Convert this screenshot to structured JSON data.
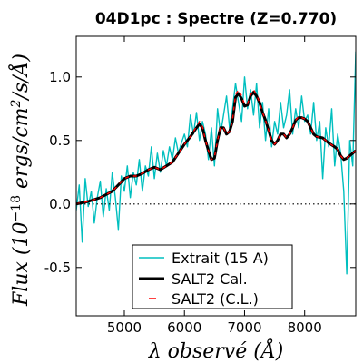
{
  "chart_data": {
    "type": "line",
    "title": "04D1pc : Spectre (Z=0.770)",
    "xlabel": "λ observé (Å)",
    "ylabel": "Flux (10⁻¹⁸ ergs/cm²/s/Å)",
    "xlim": [
      4200,
      8850
    ],
    "ylim": [
      -0.88,
      1.32
    ],
    "xticks": [
      "5000",
      "6000",
      "7000",
      "8000"
    ],
    "yticks": [
      "-0.5",
      "0.0",
      "0.5",
      "1.0"
    ],
    "zero_line": "dotted",
    "legend_position": "lower-center",
    "series": [
      {
        "name": "Extrait (15 A)",
        "color": "#00bfbf",
        "x": [
          4200,
          4250,
          4300,
          4350,
          4400,
          4450,
          4500,
          4550,
          4600,
          4650,
          4700,
          4750,
          4800,
          4850,
          4900,
          4950,
          5000,
          5050,
          5100,
          5150,
          5200,
          5250,
          5300,
          5350,
          5400,
          5450,
          5500,
          5550,
          5600,
          5650,
          5700,
          5750,
          5800,
          5850,
          5900,
          5950,
          6000,
          6050,
          6100,
          6150,
          6200,
          6250,
          6300,
          6350,
          6400,
          6450,
          6500,
          6550,
          6600,
          6650,
          6700,
          6750,
          6800,
          6850,
          6900,
          6950,
          7000,
          7050,
          7100,
          7150,
          7200,
          7250,
          7300,
          7350,
          7400,
          7450,
          7500,
          7550,
          7600,
          7650,
          7700,
          7750,
          7800,
          7850,
          7900,
          7950,
          8000,
          8050,
          8100,
          8150,
          8200,
          8250,
          8300,
          8350,
          8400,
          8450,
          8500,
          8550,
          8600,
          8650,
          8700,
          8750,
          8800,
          8850
        ],
        "y": [
          -0.05,
          0.15,
          -0.3,
          0.2,
          -0.02,
          0.1,
          -0.15,
          0.05,
          0.18,
          -0.1,
          0.12,
          -0.05,
          0.25,
          0.05,
          -0.2,
          0.22,
          0.1,
          0.3,
          0.05,
          0.25,
          0.15,
          0.35,
          0.1,
          0.3,
          0.22,
          0.45,
          0.2,
          0.4,
          0.25,
          0.42,
          0.3,
          0.45,
          0.35,
          0.52,
          0.4,
          0.48,
          0.55,
          0.45,
          0.7,
          0.55,
          0.72,
          0.5,
          0.65,
          0.55,
          0.35,
          0.6,
          0.3,
          0.75,
          0.55,
          0.7,
          0.85,
          0.6,
          0.75,
          0.95,
          0.8,
          0.65,
          1.0,
          0.75,
          0.9,
          0.7,
          0.95,
          0.6,
          0.8,
          0.5,
          0.75,
          0.45,
          0.65,
          0.55,
          0.8,
          0.6,
          0.7,
          0.9,
          0.55,
          0.75,
          0.6,
          0.85,
          0.65,
          0.7,
          0.55,
          0.8,
          0.5,
          0.65,
          0.2,
          0.6,
          0.45,
          0.75,
          0.3,
          0.55,
          0.4,
          0.1,
          -0.55,
          0.5,
          0.3,
          1.2
        ]
      },
      {
        "name": "SALT2 Cal.",
        "color": "#000000",
        "x": [
          4200,
          4400,
          4600,
          4800,
          4900,
          5000,
          5100,
          5200,
          5300,
          5400,
          5500,
          5600,
          5700,
          5800,
          5900,
          6000,
          6100,
          6200,
          6250,
          6300,
          6350,
          6400,
          6450,
          6500,
          6550,
          6600,
          6650,
          6700,
          6750,
          6800,
          6850,
          6900,
          6950,
          7000,
          7050,
          7100,
          7150,
          7200,
          7250,
          7300,
          7350,
          7400,
          7450,
          7500,
          7550,
          7600,
          7650,
          7700,
          7750,
          7800,
          7850,
          7900,
          7950,
          8000,
          8050,
          8100,
          8150,
          8200,
          8300,
          8400,
          8500,
          8550,
          8600,
          8650,
          8700,
          8750,
          8800,
          8850
        ],
        "y": [
          0.0,
          0.02,
          0.05,
          0.1,
          0.15,
          0.2,
          0.22,
          0.22,
          0.24,
          0.27,
          0.29,
          0.27,
          0.3,
          0.33,
          0.4,
          0.47,
          0.53,
          0.6,
          0.63,
          0.6,
          0.5,
          0.42,
          0.35,
          0.36,
          0.5,
          0.6,
          0.6,
          0.55,
          0.57,
          0.65,
          0.84,
          0.87,
          0.83,
          0.77,
          0.78,
          0.85,
          0.88,
          0.85,
          0.8,
          0.72,
          0.66,
          0.58,
          0.5,
          0.47,
          0.5,
          0.55,
          0.55,
          0.52,
          0.55,
          0.6,
          0.66,
          0.68,
          0.68,
          0.67,
          0.65,
          0.6,
          0.55,
          0.53,
          0.52,
          0.48,
          0.45,
          0.43,
          0.38,
          0.35,
          0.36,
          0.38,
          0.4,
          0.42
        ]
      },
      {
        "name": "SALT2 (C.L.)",
        "color": "#ff0000",
        "x": [
          4200,
          4400,
          4600,
          4800,
          4900,
          5000,
          5100,
          5200,
          5300,
          5400,
          5500,
          5600,
          5700,
          5800,
          5900,
          6000,
          6100,
          6200,
          6250,
          6300,
          6350,
          6400,
          6450,
          6500,
          6550,
          6600,
          6650,
          6700,
          6750,
          6800,
          6850,
          6900,
          6950,
          7000,
          7050,
          7100,
          7150,
          7200,
          7250,
          7300,
          7350,
          7400,
          7450,
          7500,
          7550,
          7600,
          7650,
          7700,
          7750,
          7800,
          7850,
          7900,
          7950,
          8000,
          8050,
          8100,
          8150,
          8200,
          8300,
          8400,
          8500,
          8550,
          8600,
          8650,
          8700,
          8750,
          8800,
          8850
        ],
        "y": [
          0.0,
          0.02,
          0.05,
          0.1,
          0.15,
          0.2,
          0.22,
          0.22,
          0.24,
          0.27,
          0.29,
          0.27,
          0.3,
          0.33,
          0.4,
          0.47,
          0.53,
          0.61,
          0.65,
          0.61,
          0.5,
          0.42,
          0.35,
          0.37,
          0.5,
          0.61,
          0.6,
          0.55,
          0.57,
          0.66,
          0.86,
          0.9,
          0.85,
          0.78,
          0.79,
          0.86,
          0.9,
          0.86,
          0.8,
          0.72,
          0.66,
          0.58,
          0.5,
          0.47,
          0.5,
          0.55,
          0.55,
          0.52,
          0.55,
          0.6,
          0.66,
          0.69,
          0.68,
          0.67,
          0.65,
          0.6,
          0.55,
          0.53,
          0.52,
          0.48,
          0.45,
          0.43,
          0.38,
          0.35,
          0.36,
          0.38,
          0.4,
          0.42
        ]
      }
    ]
  }
}
